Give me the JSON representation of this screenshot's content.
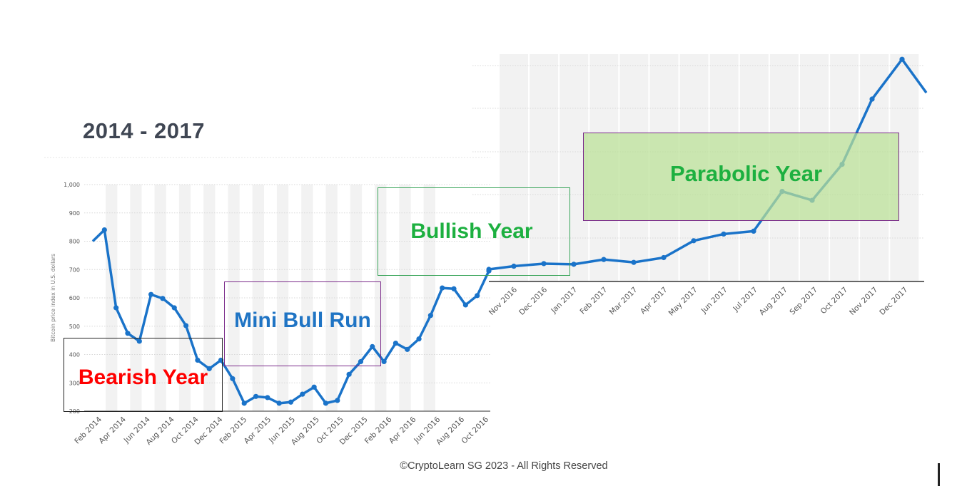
{
  "title": "2014 - 2017",
  "footer": "©CryptoLearn SG 2023 - All Rights Reserved",
  "colors": {
    "line": "#1a73c9",
    "bearish": "#ff0000",
    "mini_bull": "#1f74c4",
    "bullish": "#1db040",
    "parabolic": "#1db040",
    "parabolic_fill": "#bfe39b"
  },
  "annotations": {
    "bearish": "Bearish Year",
    "mini_bull": "Mini Bull Run",
    "bullish": "Bullish Year",
    "parabolic": "Parabolic Year"
  },
  "chart_data": [
    {
      "type": "line",
      "title": "",
      "xlabel": "",
      "ylabel": "Bitcoin price index in U.S. dollars",
      "ylim": [
        200,
        1000
      ],
      "yticks": [
        200,
        300,
        400,
        500,
        600,
        700,
        800,
        900,
        1000
      ],
      "x_tick_labels": [
        "Feb 2014",
        "Apr 2014",
        "Jun 2014",
        "Aug 2014",
        "Oct 2014",
        "Dec 2014",
        "Feb 2015",
        "Apr 2015",
        "Jun 2015",
        "Aug 2015",
        "Oct 2015",
        "Dec 2015",
        "Feb 2016",
        "Apr 2016",
        "Jun 2016",
        "Aug 2016",
        "Oct 2016"
      ],
      "series": [
        {
          "values": [
            800,
            840,
            565,
            475,
            447,
            612,
            598,
            565,
            502,
            380,
            350,
            380,
            315,
            228,
            252,
            248,
            228,
            232,
            260,
            285,
            228,
            238,
            330,
            375,
            428,
            375,
            440,
            418,
            455,
            538,
            635,
            632,
            575,
            608,
            695
          ]
        }
      ]
    },
    {
      "type": "line",
      "title": "",
      "xlabel": "",
      "ylabel": "",
      "x_tick_labels": [
        "Nov 2016",
        "Dec 2016",
        "Jan 2017",
        "Feb 2017",
        "Mar 2017",
        "Apr 2017",
        "May 2017",
        "Jun 2017",
        "Jul 2017",
        "Aug 2017",
        "Sep 2017",
        "Oct 2017",
        "Nov 2017",
        "Dec 2017"
      ],
      "series": [
        {
          "values": [
            700,
            710,
            718,
            716,
            731,
            722,
            737,
            790,
            811,
            820,
            945,
            917,
            1030,
            1235,
            1360,
            1255
          ]
        }
      ]
    }
  ]
}
